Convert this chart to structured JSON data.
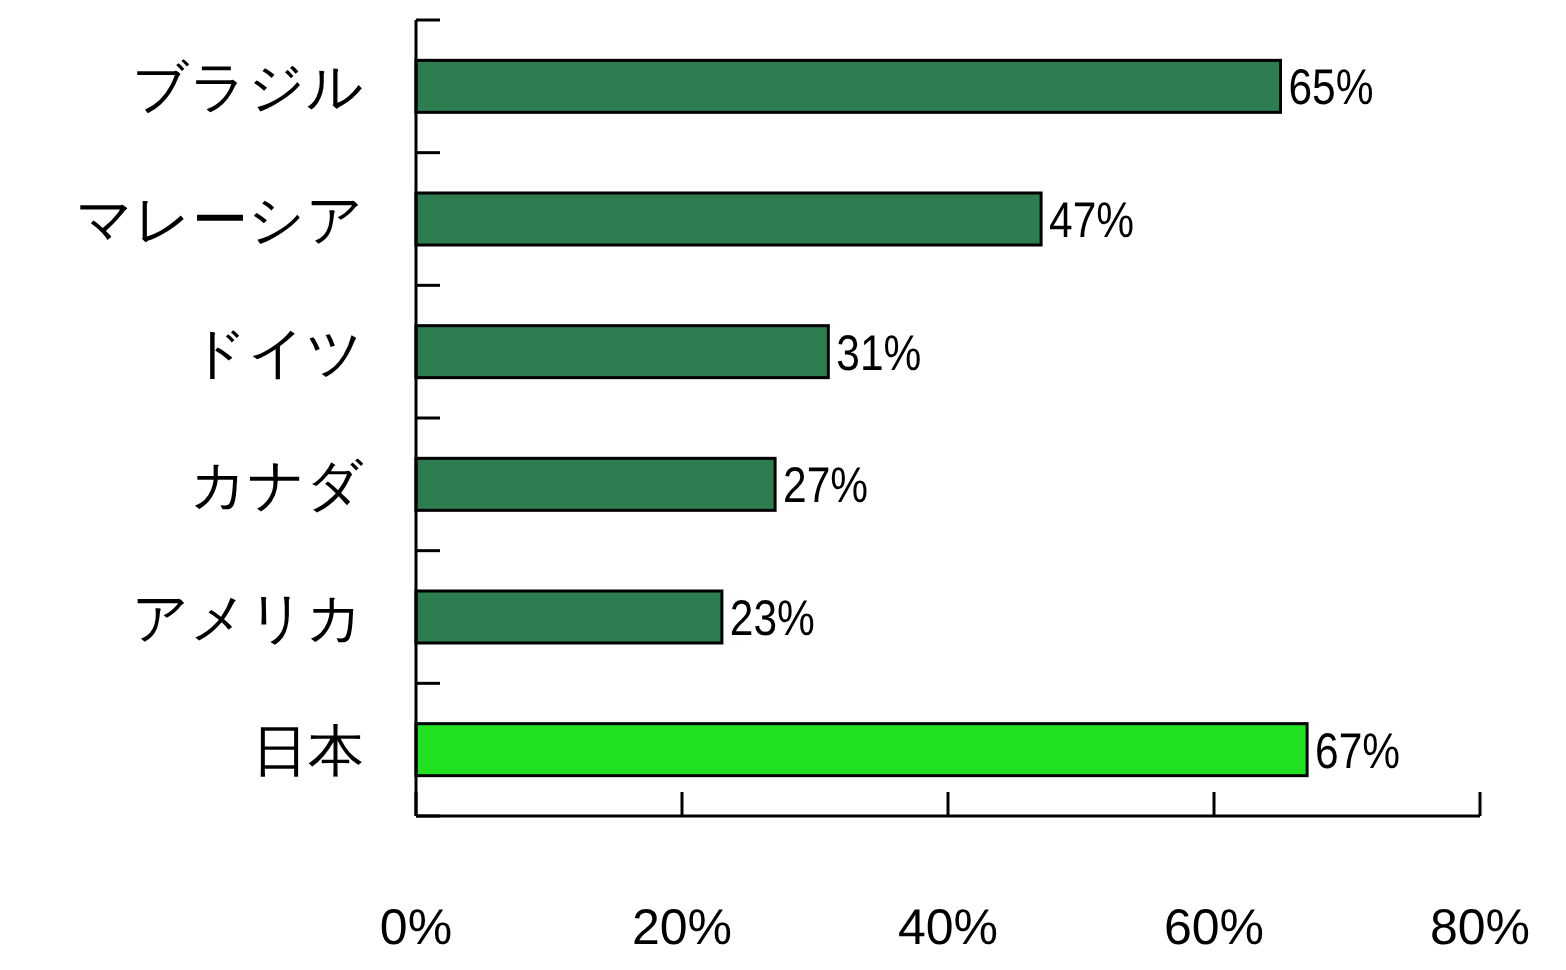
{
  "chart_data": {
    "type": "bar",
    "orientation": "horizontal",
    "categories": [
      "ブラジル",
      "マレーシア",
      "ドイツ",
      "カナダ",
      "アメリカ",
      "日本"
    ],
    "values": [
      65,
      47,
      31,
      27,
      23,
      67
    ],
    "colors": [
      "#2e7d50",
      "#2e7d50",
      "#2e7d50",
      "#2e7d50",
      "#2e7d50",
      "#22e022"
    ],
    "xlim": [
      0,
      80
    ],
    "xticks": [
      {
        "value": 0,
        "label": "0%"
      },
      {
        "value": 20,
        "label": "20%"
      },
      {
        "value": 40,
        "label": "40%"
      },
      {
        "value": 60,
        "label": "60%"
      },
      {
        "value": 80,
        "label": "80%"
      }
    ],
    "value_labels": [
      "65%",
      "47%",
      "31%",
      "27%",
      "23%",
      "67%"
    ],
    "grid": false
  }
}
